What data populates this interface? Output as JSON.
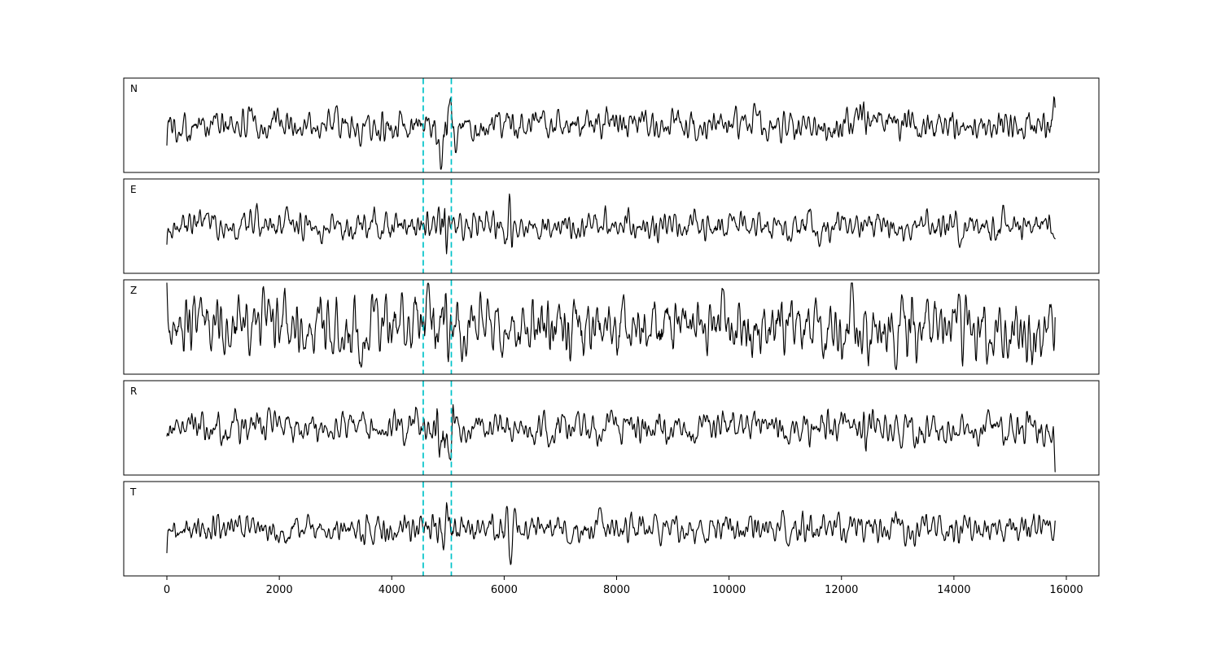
{
  "figure": {
    "background": "#ffffff",
    "trace_color": "#000000",
    "pick_line_color": "#00c3c9"
  },
  "chart_data": {
    "type": "line",
    "title": "",
    "xlabel": "",
    "ylabel": "",
    "legend": null,
    "grid": false,
    "x_ticks": [
      0,
      2000,
      4000,
      6000,
      8000,
      10000,
      12000,
      14000,
      16000
    ],
    "x_tick_labels": [
      "0",
      "2000",
      "4000",
      "6000",
      "8000",
      "10000",
      "12000",
      "14000",
      "16000"
    ],
    "x_range": [
      0,
      15800
    ],
    "xlim": [
      -770,
      16580
    ],
    "pick_lines": [
      4560,
      5060
    ],
    "pick_line_style": "dashed",
    "channels": [
      {
        "label": "N",
        "seed": 101,
        "amp": 0.16,
        "events": [
          {
            "x": 4950,
            "width": 110,
            "amp": 1.9
          },
          {
            "x": 12430,
            "width": 60,
            "amp": 1.5
          },
          {
            "x": 15790,
            "width": 40,
            "amp": 1.0
          }
        ]
      },
      {
        "label": "E",
        "seed": 202,
        "amp": 0.15,
        "events": [
          {
            "x": 4950,
            "width": 90,
            "amp": 1.5
          },
          {
            "x": 6100,
            "width": 45,
            "amp": 1.2
          }
        ]
      },
      {
        "label": "Z",
        "seed": 303,
        "amp": 0.33,
        "events": [
          {
            "x": 4950,
            "width": 150,
            "amp": 0.25
          }
        ]
      },
      {
        "label": "R",
        "seed": 404,
        "amp": 0.17,
        "events": [
          {
            "x": 4960,
            "width": 100,
            "amp": 2.0
          },
          {
            "x": 12430,
            "width": 65,
            "amp": 1.6
          },
          {
            "x": 15790,
            "width": 40,
            "amp": 1.0
          }
        ]
      },
      {
        "label": "T",
        "seed": 505,
        "amp": 0.15,
        "events": [
          {
            "x": 6120,
            "width": 50,
            "amp": 1.7
          },
          {
            "x": 4950,
            "width": 100,
            "amp": 0.8
          }
        ]
      }
    ]
  }
}
